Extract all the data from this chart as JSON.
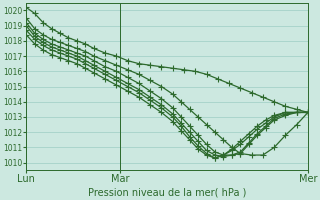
{
  "xlabel": "Pression niveau de la mer( hPa )",
  "bg_color": "#cce8e0",
  "grid_color": "#9ecec4",
  "line_color": "#2d6a2d",
  "marker": "+",
  "markersize": 4,
  "linewidth": 0.9,
  "ylim": [
    1009.5,
    1020.5
  ],
  "yticks": [
    1010,
    1011,
    1012,
    1013,
    1014,
    1015,
    1016,
    1017,
    1018,
    1019,
    1020
  ],
  "xtick_labels": [
    "Lun",
    "Mar",
    "Mer"
  ],
  "xtick_positions": [
    0,
    0.333,
    1.0
  ],
  "series": [
    {
      "x": [
        0,
        0.03,
        0.06,
        0.09,
        0.12,
        0.15,
        0.18,
        0.21,
        0.24,
        0.28,
        0.32,
        0.36,
        0.4,
        0.44,
        0.48,
        0.52,
        0.56,
        0.6,
        0.64,
        0.68,
        0.72,
        0.76,
        0.8,
        0.84,
        0.88,
        0.92,
        0.96,
        1.0
      ],
      "y": [
        1020.2,
        1019.8,
        1019.2,
        1018.8,
        1018.5,
        1018.2,
        1018.0,
        1017.8,
        1017.5,
        1017.2,
        1017.0,
        1016.7,
        1016.5,
        1016.4,
        1016.3,
        1016.2,
        1016.1,
        1016.0,
        1015.8,
        1015.5,
        1015.2,
        1014.9,
        1014.6,
        1014.3,
        1014.0,
        1013.7,
        1013.5,
        1013.3
      ]
    },
    {
      "x": [
        0,
        0.03,
        0.06,
        0.09,
        0.12,
        0.15,
        0.18,
        0.21,
        0.24,
        0.28,
        0.32,
        0.36,
        0.4,
        0.44,
        0.48,
        0.52,
        0.55,
        0.58,
        0.61,
        0.64,
        0.67,
        0.7,
        0.73,
        0.76,
        0.8,
        0.84,
        0.88,
        0.92,
        0.96,
        1.0
      ],
      "y": [
        1019.5,
        1018.8,
        1018.4,
        1018.1,
        1017.9,
        1017.7,
        1017.5,
        1017.3,
        1017.0,
        1016.7,
        1016.4,
        1016.1,
        1015.8,
        1015.4,
        1015.0,
        1014.5,
        1014.0,
        1013.5,
        1013.0,
        1012.5,
        1012.0,
        1011.5,
        1011.0,
        1010.6,
        1010.5,
        1010.5,
        1011.0,
        1011.8,
        1012.5,
        1013.3
      ]
    },
    {
      "x": [
        0,
        0.03,
        0.06,
        0.09,
        0.12,
        0.15,
        0.18,
        0.21,
        0.24,
        0.28,
        0.32,
        0.36,
        0.4,
        0.44,
        0.48,
        0.52,
        0.55,
        0.58,
        0.61,
        0.64,
        0.67,
        0.7,
        0.73,
        0.76,
        0.79,
        0.82,
        0.85,
        0.88,
        0.92,
        0.96,
        1.0
      ],
      "y": [
        1019.2,
        1018.5,
        1018.1,
        1017.8,
        1017.6,
        1017.4,
        1017.2,
        1017.0,
        1016.7,
        1016.3,
        1016.0,
        1015.6,
        1015.2,
        1014.7,
        1014.2,
        1013.6,
        1013.0,
        1012.4,
        1011.8,
        1011.2,
        1010.7,
        1010.5,
        1010.5,
        1010.6,
        1011.2,
        1011.8,
        1012.3,
        1012.8,
        1013.1,
        1013.3,
        1013.3
      ]
    },
    {
      "x": [
        0,
        0.03,
        0.06,
        0.09,
        0.12,
        0.15,
        0.18,
        0.21,
        0.24,
        0.28,
        0.32,
        0.36,
        0.4,
        0.44,
        0.48,
        0.52,
        0.55,
        0.58,
        0.61,
        0.64,
        0.67,
        0.7,
        0.73,
        0.76,
        0.79,
        0.82,
        0.85,
        0.88,
        0.92,
        0.96,
        1.0
      ],
      "y": [
        1019.0,
        1018.3,
        1017.9,
        1017.6,
        1017.4,
        1017.2,
        1017.0,
        1016.7,
        1016.4,
        1016.0,
        1015.6,
        1015.2,
        1014.8,
        1014.3,
        1013.8,
        1013.2,
        1012.6,
        1012.0,
        1011.4,
        1010.8,
        1010.5,
        1010.4,
        1010.5,
        1010.7,
        1011.3,
        1011.9,
        1012.4,
        1012.9,
        1013.2,
        1013.3,
        1013.3
      ]
    },
    {
      "x": [
        0,
        0.03,
        0.06,
        0.09,
        0.12,
        0.15,
        0.18,
        0.21,
        0.24,
        0.28,
        0.32,
        0.36,
        0.4,
        0.44,
        0.48,
        0.52,
        0.55,
        0.58,
        0.61,
        0.64,
        0.67,
        0.7,
        0.73,
        0.76,
        0.79,
        0.82,
        0.85,
        0.88,
        0.92,
        0.96,
        1.0
      ],
      "y": [
        1018.7,
        1018.1,
        1017.7,
        1017.4,
        1017.2,
        1017.0,
        1016.8,
        1016.5,
        1016.2,
        1015.8,
        1015.4,
        1015.0,
        1014.6,
        1014.1,
        1013.6,
        1013.0,
        1012.4,
        1011.7,
        1011.1,
        1010.6,
        1010.3,
        1010.5,
        1010.8,
        1011.2,
        1011.7,
        1012.2,
        1012.6,
        1013.0,
        1013.3,
        1013.3,
        1013.3
      ]
    },
    {
      "x": [
        0,
        0.03,
        0.06,
        0.09,
        0.12,
        0.15,
        0.18,
        0.21,
        0.24,
        0.28,
        0.32,
        0.36,
        0.4,
        0.44,
        0.48,
        0.52,
        0.55,
        0.58,
        0.61,
        0.64,
        0.67,
        0.7,
        0.73,
        0.76,
        0.79,
        0.82,
        0.85,
        0.88,
        0.92,
        0.96,
        1.0
      ],
      "y": [
        1018.4,
        1017.8,
        1017.4,
        1017.1,
        1016.9,
        1016.7,
        1016.5,
        1016.2,
        1015.9,
        1015.5,
        1015.1,
        1014.7,
        1014.3,
        1013.8,
        1013.3,
        1012.7,
        1012.1,
        1011.5,
        1010.9,
        1010.5,
        1010.3,
        1010.5,
        1010.9,
        1011.4,
        1011.9,
        1012.4,
        1012.8,
        1013.1,
        1013.3,
        1013.3,
        1013.3
      ]
    }
  ]
}
